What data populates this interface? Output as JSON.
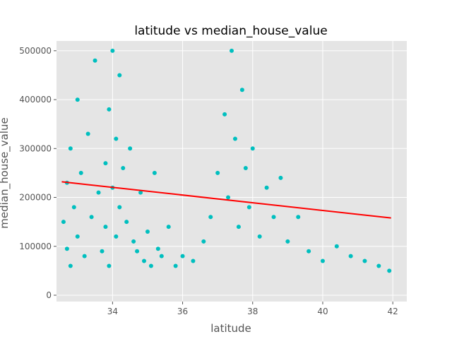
{
  "chart_data": {
    "type": "scatter",
    "title": "latitude vs median_house_value",
    "xlabel": "latitude",
    "ylabel": "median_house_value",
    "xlim": [
      32.4,
      42.4
    ],
    "ylim": [
      -13000,
      520000
    ],
    "x_ticks": [
      34,
      36,
      38,
      40,
      42
    ],
    "y_ticks": [
      0,
      100000,
      200000,
      300000,
      400000,
      500000
    ],
    "x_tick_labels": [
      "34",
      "36",
      "38",
      "40",
      "42"
    ],
    "y_tick_labels": [
      "0",
      "100000",
      "200000",
      "300000",
      "400000",
      "500000"
    ],
    "grid": true,
    "style": "ggplot",
    "colors": {
      "points": "#00BFBF",
      "fit": "#FF0000",
      "background": "#E5E5E5",
      "grid": "#FFFFFF"
    },
    "series": [
      {
        "kind": "scatter",
        "x": [
          32.6,
          32.7,
          32.7,
          32.8,
          32.8,
          32.9,
          33.0,
          33.0,
          33.1,
          33.2,
          33.3,
          33.4,
          33.5,
          33.6,
          33.7,
          33.8,
          33.8,
          33.9,
          33.9,
          34.0,
          34.0,
          34.1,
          34.1,
          34.2,
          34.2,
          34.3,
          34.4,
          34.5,
          34.6,
          34.7,
          34.8,
          34.9,
          35.0,
          35.1,
          35.2,
          35.3,
          35.4,
          35.6,
          35.8,
          36.0,
          36.3,
          36.6,
          36.8,
          37.0,
          37.2,
          37.3,
          37.4,
          37.5,
          37.6,
          37.7,
          37.8,
          37.9,
          38.0,
          38.2,
          38.4,
          38.6,
          38.8,
          39.0,
          39.3,
          39.6,
          40.0,
          40.4,
          40.8,
          41.2,
          41.6,
          41.9
        ],
        "y": [
          150000,
          230000,
          95000,
          300000,
          60000,
          180000,
          400000,
          120000,
          250000,
          80000,
          330000,
          160000,
          480000,
          210000,
          90000,
          270000,
          140000,
          380000,
          60000,
          500000,
          220000,
          120000,
          320000,
          180000,
          450000,
          260000,
          150000,
          300000,
          110000,
          90000,
          210000,
          70000,
          130000,
          60000,
          250000,
          95000,
          80000,
          140000,
          60000,
          80000,
          70000,
          110000,
          160000,
          250000,
          370000,
          200000,
          500000,
          320000,
          140000,
          420000,
          260000,
          180000,
          300000,
          120000,
          220000,
          160000,
          240000,
          110000,
          160000,
          90000,
          70000,
          100000,
          80000,
          70000,
          60000,
          50000
        ]
      },
      {
        "kind": "line",
        "x": [
          32.55,
          41.95
        ],
        "y": [
          232000,
          158000
        ]
      }
    ]
  }
}
